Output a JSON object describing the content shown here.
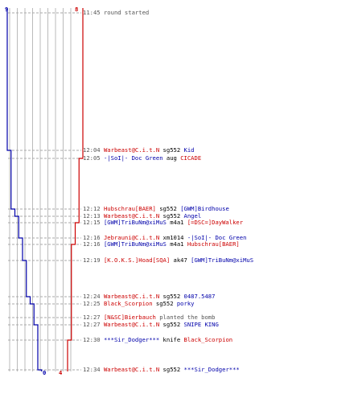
{
  "header": {
    "start_count": {
      "blue": "9",
      "red": "8"
    }
  },
  "footer": {
    "end_count": {
      "blue": "0",
      "red": "4"
    }
  },
  "colors": {
    "team_red": "#cc0000",
    "team_blue": "#0000aa",
    "gridline": "#bbbbbb",
    "dashed": "#aaaaaa",
    "text": "#000000",
    "time": "#555555"
  },
  "events": [
    {
      "time": "11:45",
      "type": "note",
      "text": "round started"
    },
    {
      "time": "12:04",
      "type": "kill",
      "killer": "Warbeast@C.i.t.N",
      "killer_team": "red",
      "weapon": "sg552",
      "victim": "Kid",
      "victim_team": "blue"
    },
    {
      "time": "12:05",
      "type": "kill",
      "killer": "-|SoI|- Doc Green",
      "killer_team": "blue",
      "weapon": "aug",
      "victim": "CICADE",
      "victim_team": "red"
    },
    {
      "time": "12:12",
      "type": "kill",
      "killer": "Hubschrau[BAER]",
      "killer_team": "red",
      "weapon": "sg552",
      "victim": "[GWM]Birdhouse",
      "victim_team": "blue"
    },
    {
      "time": "12:13",
      "type": "kill",
      "killer": "Warbeast@C.i.t.N",
      "killer_team": "red",
      "weapon": "sg552",
      "victim": "Angel",
      "victim_team": "blue"
    },
    {
      "time": "12:15",
      "type": "kill",
      "killer": "[GWM]TriBuNm@xiMuS",
      "killer_team": "blue",
      "weapon": "m4a1",
      "victim": "[=DSC=]DayWalker",
      "victim_team": "red"
    },
    {
      "time": "12:16",
      "type": "kill",
      "killer": "Jebrauni@C.i.t.N",
      "killer_team": "red",
      "weapon": "xm1014",
      "victim": "-|SoI|- Doc Green",
      "victim_team": "blue"
    },
    {
      "time": "12:16",
      "type": "kill",
      "killer": "[GWM]TriBuNm@xiMuS",
      "killer_team": "blue",
      "weapon": "m4a1",
      "victim": "Hubschrau[BAER]",
      "victim_team": "red"
    },
    {
      "time": "12:19",
      "type": "kill",
      "killer": "[K.O.K.S.]Hoad[SQA]",
      "killer_team": "red",
      "weapon": "ak47",
      "victim": "[GWM]TriBuNm@xiMuS",
      "victim_team": "blue"
    },
    {
      "time": "12:24",
      "type": "kill",
      "killer": "Warbeast@C.i.t.N",
      "killer_team": "red",
      "weapon": "sg552",
      "victim": "0487.5487",
      "victim_team": "blue"
    },
    {
      "time": "12:25",
      "type": "kill",
      "killer": "Black_Scorpion",
      "killer_team": "red",
      "weapon": "sg552",
      "victim": "porky",
      "victim_team": "blue"
    },
    {
      "time": "12:27",
      "type": "bomb",
      "actor": "[N&SC]Bierbauch",
      "actor_team": "red",
      "text": "planted the bomb"
    },
    {
      "time": "12:27",
      "type": "kill",
      "killer": "Warbeast@C.i.t.N",
      "killer_team": "red",
      "weapon": "sg552",
      "victim": "SNIPE KING",
      "victim_team": "blue"
    },
    {
      "time": "12:30",
      "type": "kill",
      "killer": "***Sir_Dodger***",
      "killer_team": "blue",
      "weapon": "knife",
      "victim": "Black_Scorpion",
      "victim_team": "red"
    },
    {
      "time": "12:34",
      "type": "kill",
      "killer": "Warbeast@C.i.t.N",
      "killer_team": "red",
      "weapon": "sg552",
      "victim": "***Sir_Dodger***",
      "victim_team": "blue"
    }
  ]
}
